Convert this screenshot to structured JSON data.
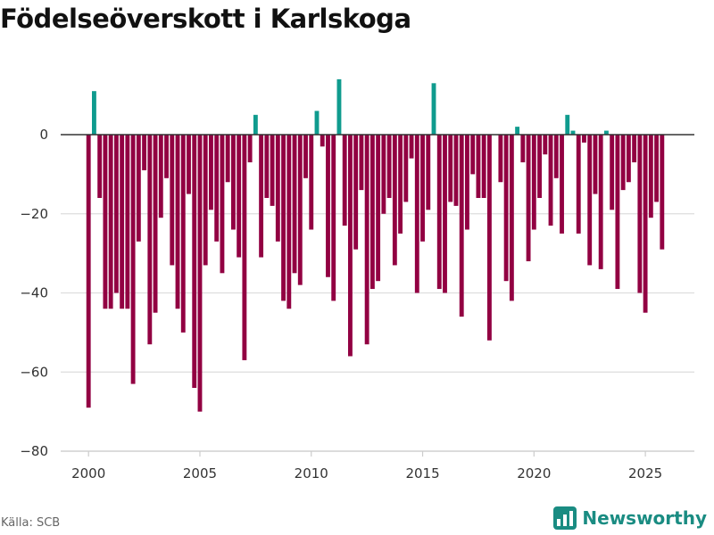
{
  "header": {
    "title": "Födelseöverskott i Karlskoga"
  },
  "footer": {
    "source": "Källa: SCB",
    "brand": "Newsworthy"
  },
  "colors": {
    "positive": "#0f9b8e",
    "negative": "#920042",
    "grid": "#dddddd",
    "zero_line": "#333333",
    "brand": "#1a8c82"
  },
  "chart_data": {
    "type": "bar",
    "title": "Födelseöverskott i Karlskoga",
    "xlabel": "",
    "ylabel": "",
    "x_frequency": "quarterly",
    "x_start": 2000.0,
    "x_ticks": [
      2000,
      2005,
      2010,
      2015,
      2020,
      2025
    ],
    "y_ticks": [
      0,
      -20,
      -40,
      -60,
      -80
    ],
    "ylim": [
      -80,
      16
    ],
    "xlim": [
      1998.75,
      2027.2
    ],
    "values": [
      -69,
      11,
      -16,
      -44,
      -44,
      -40,
      -44,
      -44,
      -63,
      -27,
      -9,
      -53,
      -45,
      -21,
      -11,
      -33,
      -44,
      -50,
      -15,
      -64,
      -70,
      -33,
      -19,
      -27,
      -35,
      -12,
      -24,
      -31,
      -57,
      -7,
      5,
      -31,
      -16,
      -18,
      -27,
      -42,
      -44,
      -35,
      -38,
      -11,
      -24,
      6,
      -3,
      -36,
      -42,
      14,
      -23,
      -56,
      -29,
      -14,
      -53,
      -39,
      -37,
      -20,
      -16,
      -33,
      -25,
      -17,
      -6,
      -40,
      -27,
      -19,
      13,
      -39,
      -40,
      -17,
      -18,
      -46,
      -24,
      -10,
      -16,
      -16,
      -52,
      0,
      -12,
      -37,
      -42,
      2,
      -7,
      -32,
      -24,
      -16,
      -5,
      -23,
      -11,
      -25,
      5,
      1,
      -25,
      -2,
      -33,
      -15,
      -34,
      1,
      -19,
      -39,
      -14,
      -12,
      -7,
      -40,
      -45,
      -21,
      -17,
      -29
    ]
  }
}
